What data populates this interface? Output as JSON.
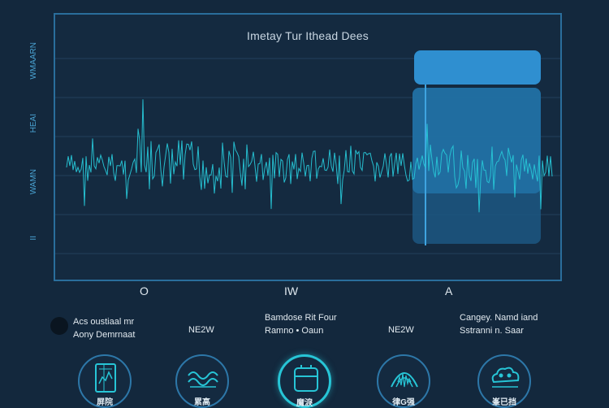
{
  "panel": {
    "title": "Imetay Tur Ithead Dees"
  },
  "y_labels": [
    "WMAARN",
    "HEAI",
    "WAMN",
    "II"
  ],
  "x_labels": [
    "O",
    "IW",
    "A"
  ],
  "legend": {
    "left_line1": "Acs oustiaal mr",
    "left_line2": "Aony Demrnaat",
    "code1": "NE2W",
    "center_line1": "Bamdose Rit Four",
    "center_line2": "Ramno • Oaun",
    "code2": "NE2W",
    "right_line1": "Cangey. Namd iand",
    "right_line2": "Sstranni n. Saar"
  },
  "icons": [
    {
      "name": "chart-doc-icon",
      "label": "屏院"
    },
    {
      "name": "wave-field-icon",
      "label": "累高"
    },
    {
      "name": "server-box-icon",
      "label": "魔淚"
    },
    {
      "name": "radar-wave-icon",
      "label": "律G强"
    },
    {
      "name": "cloud-face-icon",
      "label": "峯已挡"
    }
  ],
  "colors": {
    "background": "#13283d",
    "signal": "#27c5d6",
    "highlight": "#2f8fd0",
    "frame": "#2a6e9c"
  }
}
